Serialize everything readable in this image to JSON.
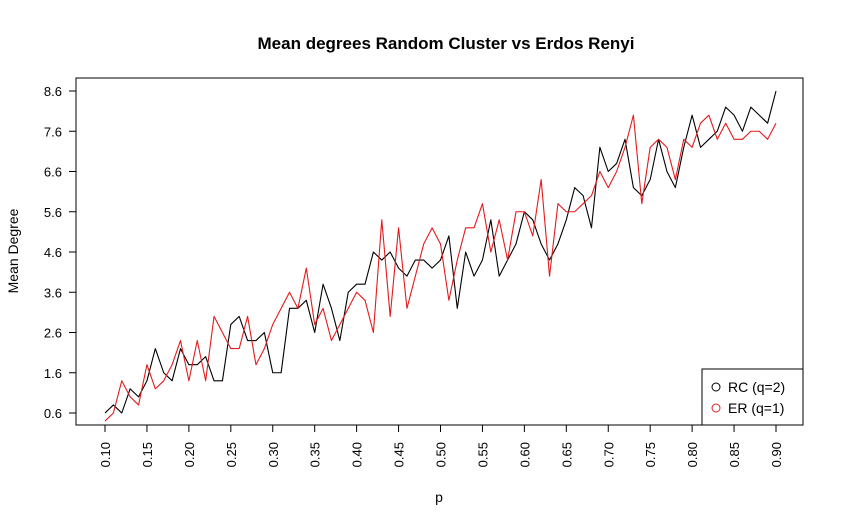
{
  "chart_data": {
    "type": "line",
    "title": "Mean degrees Random Cluster vs Erdos Renyi",
    "xlabel": "p",
    "ylabel": "Mean Degree",
    "xlim": [
      0.1,
      0.9
    ],
    "ylim": [
      0.6,
      8.6
    ],
    "x_ticks": [
      "0.10",
      "0.15",
      "0.20",
      "0.25",
      "0.30",
      "0.35",
      "0.40",
      "0.45",
      "0.50",
      "0.55",
      "0.60",
      "0.65",
      "0.70",
      "0.75",
      "0.80",
      "0.85",
      "0.90"
    ],
    "y_ticks": [
      "0.6",
      "1.6",
      "2.6",
      "3.6",
      "4.6",
      "5.6",
      "6.6",
      "7.6",
      "8.6"
    ],
    "grid": false,
    "legend_position": "bottom-right",
    "x": [
      0.1,
      0.11,
      0.12,
      0.13,
      0.14,
      0.15,
      0.16,
      0.17,
      0.18,
      0.19,
      0.2,
      0.21,
      0.22,
      0.23,
      0.24,
      0.25,
      0.26,
      0.27,
      0.28,
      0.29,
      0.3,
      0.31,
      0.32,
      0.33,
      0.34,
      0.35,
      0.36,
      0.37,
      0.38,
      0.39,
      0.4,
      0.41,
      0.42,
      0.43,
      0.44,
      0.45,
      0.46,
      0.47,
      0.48,
      0.49,
      0.5,
      0.51,
      0.52,
      0.53,
      0.54,
      0.55,
      0.56,
      0.57,
      0.58,
      0.59,
      0.6,
      0.61,
      0.62,
      0.63,
      0.64,
      0.65,
      0.66,
      0.67,
      0.68,
      0.69,
      0.7,
      0.71,
      0.72,
      0.73,
      0.74,
      0.75,
      0.76,
      0.77,
      0.78,
      0.79,
      0.8,
      0.81,
      0.82,
      0.83,
      0.84,
      0.85,
      0.86,
      0.87,
      0.88,
      0.89,
      0.9
    ],
    "series": [
      {
        "name": "RC (q=2)",
        "color": "#000000",
        "values": [
          0.6,
          0.8,
          0.6,
          1.2,
          1.0,
          1.4,
          2.2,
          1.6,
          1.4,
          2.2,
          1.8,
          1.8,
          2.0,
          1.4,
          1.4,
          2.8,
          3.0,
          2.4,
          2.4,
          2.6,
          1.6,
          1.6,
          3.2,
          3.2,
          3.4,
          2.6,
          3.8,
          3.2,
          2.4,
          3.6,
          3.8,
          3.8,
          4.6,
          4.4,
          4.6,
          4.2,
          4.0,
          4.4,
          4.4,
          4.2,
          4.4,
          5.0,
          3.2,
          4.6,
          4.0,
          4.4,
          5.4,
          4.0,
          4.4,
          4.8,
          5.6,
          5.4,
          4.8,
          4.4,
          4.8,
          5.4,
          6.2,
          6.0,
          5.2,
          7.2,
          6.6,
          6.8,
          7.4,
          6.2,
          6.0,
          6.4,
          7.4,
          6.6,
          6.2,
          7.2,
          8.0,
          7.2,
          7.4,
          7.6,
          8.2,
          8.0,
          7.6,
          8.2,
          8.0,
          7.8,
          8.6
        ]
      },
      {
        "name": "ER (q=1)",
        "color": "#e41a1c",
        "values": [
          0.4,
          0.6,
          1.4,
          1.0,
          0.8,
          1.8,
          1.2,
          1.4,
          1.8,
          2.4,
          1.4,
          2.4,
          1.4,
          3.0,
          2.6,
          2.2,
          2.2,
          3.0,
          1.8,
          2.2,
          2.8,
          3.2,
          3.6,
          3.2,
          4.2,
          2.8,
          3.2,
          2.4,
          2.8,
          3.2,
          3.6,
          3.4,
          2.6,
          5.4,
          3.0,
          5.2,
          3.2,
          4.0,
          4.8,
          5.2,
          4.8,
          3.4,
          4.4,
          5.2,
          5.2,
          5.8,
          4.6,
          5.4,
          4.4,
          5.6,
          5.6,
          5.0,
          6.4,
          4.0,
          5.8,
          5.6,
          5.6,
          5.8,
          6.0,
          6.6,
          6.2,
          6.6,
          7.2,
          8.0,
          5.8,
          7.2,
          7.4,
          7.2,
          6.4,
          7.4,
          7.2,
          7.8,
          8.0,
          7.4,
          7.8,
          7.4,
          7.4,
          7.6,
          7.6,
          7.4,
          7.8
        ]
      }
    ]
  }
}
